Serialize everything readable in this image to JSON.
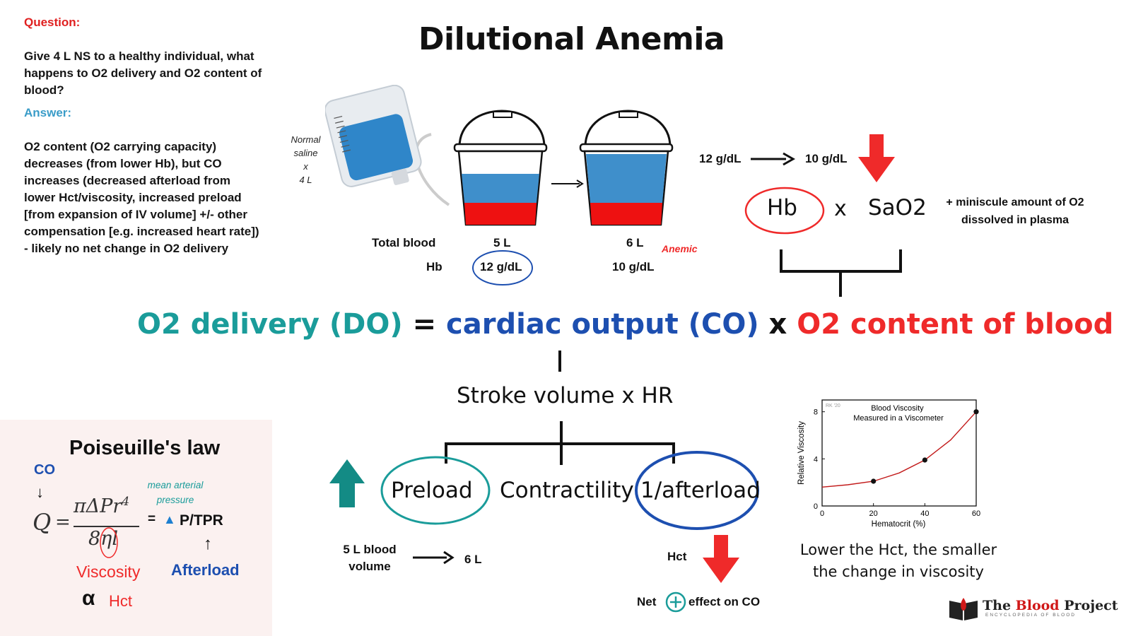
{
  "title": "Dilutional Anemia",
  "question": {
    "label": "Question:",
    "text": "Give 4 L NS to a healthy individual, what happens to O2 delivery and O2 content of blood?"
  },
  "answer": {
    "label": "Answer:",
    "text": "O2 content (O2 carrying capacity) decreases (from lower Hb), but CO increases (decreased afterload from lower Hct/viscosity, increased preload [from expansion of IV volume] +/- other compensation [e.g. increased heart rate]) - likely no net change in O2 delivery"
  },
  "saline": {
    "line1": "Normal",
    "line2": "saline",
    "line3": "x",
    "line4": "4 L"
  },
  "buckets": {
    "row_total_label": "Total blood",
    "row_hb_label": "Hb",
    "before": {
      "volume": "5 L",
      "hb": "12 g/dL"
    },
    "after": {
      "volume": "6 L",
      "hb": "10 g/dL",
      "tag": "Anemic"
    }
  },
  "hb_change": {
    "from": "12 g/dL",
    "to": "10 g/dL"
  },
  "content_formula": {
    "hb": "Hb",
    "times": "x",
    "sao2": "SaO2",
    "note": "+ miniscule amount of O2 dissolved in plasma"
  },
  "main_equation": {
    "do": "O2 delivery (DO)",
    "equals": "=",
    "co": "cardiac output (CO)",
    "times": "x",
    "content": "O2 content of blood"
  },
  "stroke": "Stroke volume x HR",
  "determinants": {
    "preload": "Preload",
    "contractility": "Contractility",
    "afterload": "1/afterload"
  },
  "preload_detail": {
    "from": "5 L blood volume",
    "to": "6 L"
  },
  "hct_label": "Hct",
  "net_effect": {
    "prefix": "Net",
    "symbol": "+",
    "suffix": "effect on CO"
  },
  "poiseuille": {
    "title": "Poiseuille's law",
    "co": "CO",
    "arrow_down": "↓",
    "q": "Q",
    "eq": "=",
    "numerator": "πΔPr",
    "power": "4",
    "denominator": "8ηl",
    "map_note": "mean arterial pressure",
    "rhs_eq": "=",
    "rhs_tri": "▲",
    "rhs": "P/TPR",
    "up_arrow": "↑",
    "viscosity": "Viscosity",
    "afterload": "Afterload",
    "alpha": "α",
    "hct": "Hct"
  },
  "viscosity_caption": "Lower the Hct, the smaller the change in viscosity",
  "logo": {
    "brand_part1": "The",
    "brand_part2": "Blood",
    "brand_part3": "Project",
    "tagline": "ENCYCLOPEDIA OF BLOOD"
  },
  "colors": {
    "teal": "#1a9c9a",
    "navy": "#1d4fb0",
    "red": "#ef2a2a",
    "blood": "#ee1111",
    "saline": "#3f8fcb"
  },
  "chart_data": {
    "type": "line",
    "title": "Blood Viscosity Measured in a Viscometer",
    "watermark": "RK '20",
    "xlabel": "Hematocrit (%)",
    "ylabel": "Relative Viscosity",
    "xlim": [
      0,
      60
    ],
    "ylim": [
      0,
      9
    ],
    "xticks": [
      0,
      20,
      40,
      60
    ],
    "yticks": [
      0,
      4,
      8
    ],
    "points": [
      {
        "x": 20,
        "y": 2.1
      },
      {
        "x": 40,
        "y": 3.9
      },
      {
        "x": 60,
        "y": 8.0
      }
    ],
    "curve": [
      [
        0,
        1.6
      ],
      [
        10,
        1.8
      ],
      [
        20,
        2.1
      ],
      [
        30,
        2.8
      ],
      [
        40,
        3.9
      ],
      [
        50,
        5.6
      ],
      [
        60,
        8.0
      ]
    ],
    "grid": false,
    "legend": "none"
  }
}
